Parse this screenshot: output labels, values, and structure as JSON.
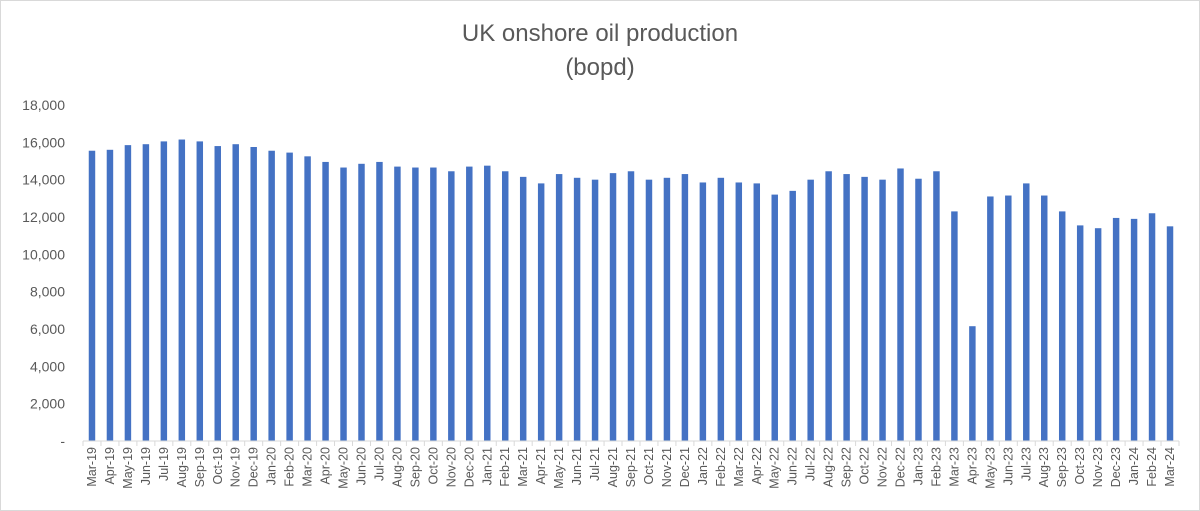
{
  "chart_data": {
    "type": "bar",
    "title_lines": [
      "UK onshore oil production",
      "(bopd)"
    ],
    "xlabel": "",
    "ylabel": "",
    "ylim": [
      0,
      18000
    ],
    "yticks": [
      0,
      2000,
      4000,
      6000,
      8000,
      10000,
      12000,
      14000,
      16000,
      18000
    ],
    "ytick_labels": [
      "-",
      "2,000",
      "4,000",
      "6,000",
      "8,000",
      "10,000",
      "12,000",
      "14,000",
      "16,000",
      "18,000"
    ],
    "grid": false,
    "legend": "none",
    "bar_color": "#4472c4",
    "categories": [
      "Mar-19",
      "Apr-19",
      "May-19",
      "Jun-19",
      "Jul-19",
      "Aug-19",
      "Sep-19",
      "Oct-19",
      "Nov-19",
      "Dec-19",
      "Jan-20",
      "Feb-20",
      "Mar-20",
      "Apr-20",
      "May-20",
      "Jun-20",
      "Jul-20",
      "Aug-20",
      "Sep-20",
      "Oct-20",
      "Nov-20",
      "Dec-20",
      "Jan-21",
      "Feb-21",
      "Mar-21",
      "Apr-21",
      "May-21",
      "Jun-21",
      "Jul-21",
      "Aug-21",
      "Sep-21",
      "Oct-21",
      "Nov-21",
      "Dec-21",
      "Jan-22",
      "Feb-22",
      "Mar-22",
      "Apr-22",
      "May-22",
      "Jun-22",
      "Jul-22",
      "Aug-22",
      "Sep-22",
      "Oct-22",
      "Nov-22",
      "Dec-22",
      "Jan-23",
      "Feb-23",
      "Mar-23",
      "Apr-23",
      "May-23",
      "Jun-23",
      "Jul-23",
      "Aug-23",
      "Sep-23",
      "Oct-23",
      "Nov-23",
      "Dec-23",
      "Jan-24",
      "Feb-24",
      "Mar-24"
    ],
    "values": [
      15550,
      15600,
      15850,
      15900,
      16050,
      16150,
      16050,
      15800,
      15900,
      15750,
      15550,
      15450,
      15250,
      14950,
      14650,
      14850,
      14950,
      14700,
      14650,
      14650,
      14450,
      14700,
      14750,
      14450,
      14150,
      13800,
      14300,
      14100,
      14000,
      14350,
      14450,
      14000,
      14100,
      14300,
      13850,
      14100,
      13850,
      13800,
      13200,
      13400,
      14000,
      14450,
      14300,
      14150,
      14000,
      14600,
      14050,
      14450,
      12300,
      6150,
      13100,
      13150,
      13800,
      13150,
      12300,
      11550,
      11400,
      11950,
      11900,
      12200,
      11500
    ]
  }
}
